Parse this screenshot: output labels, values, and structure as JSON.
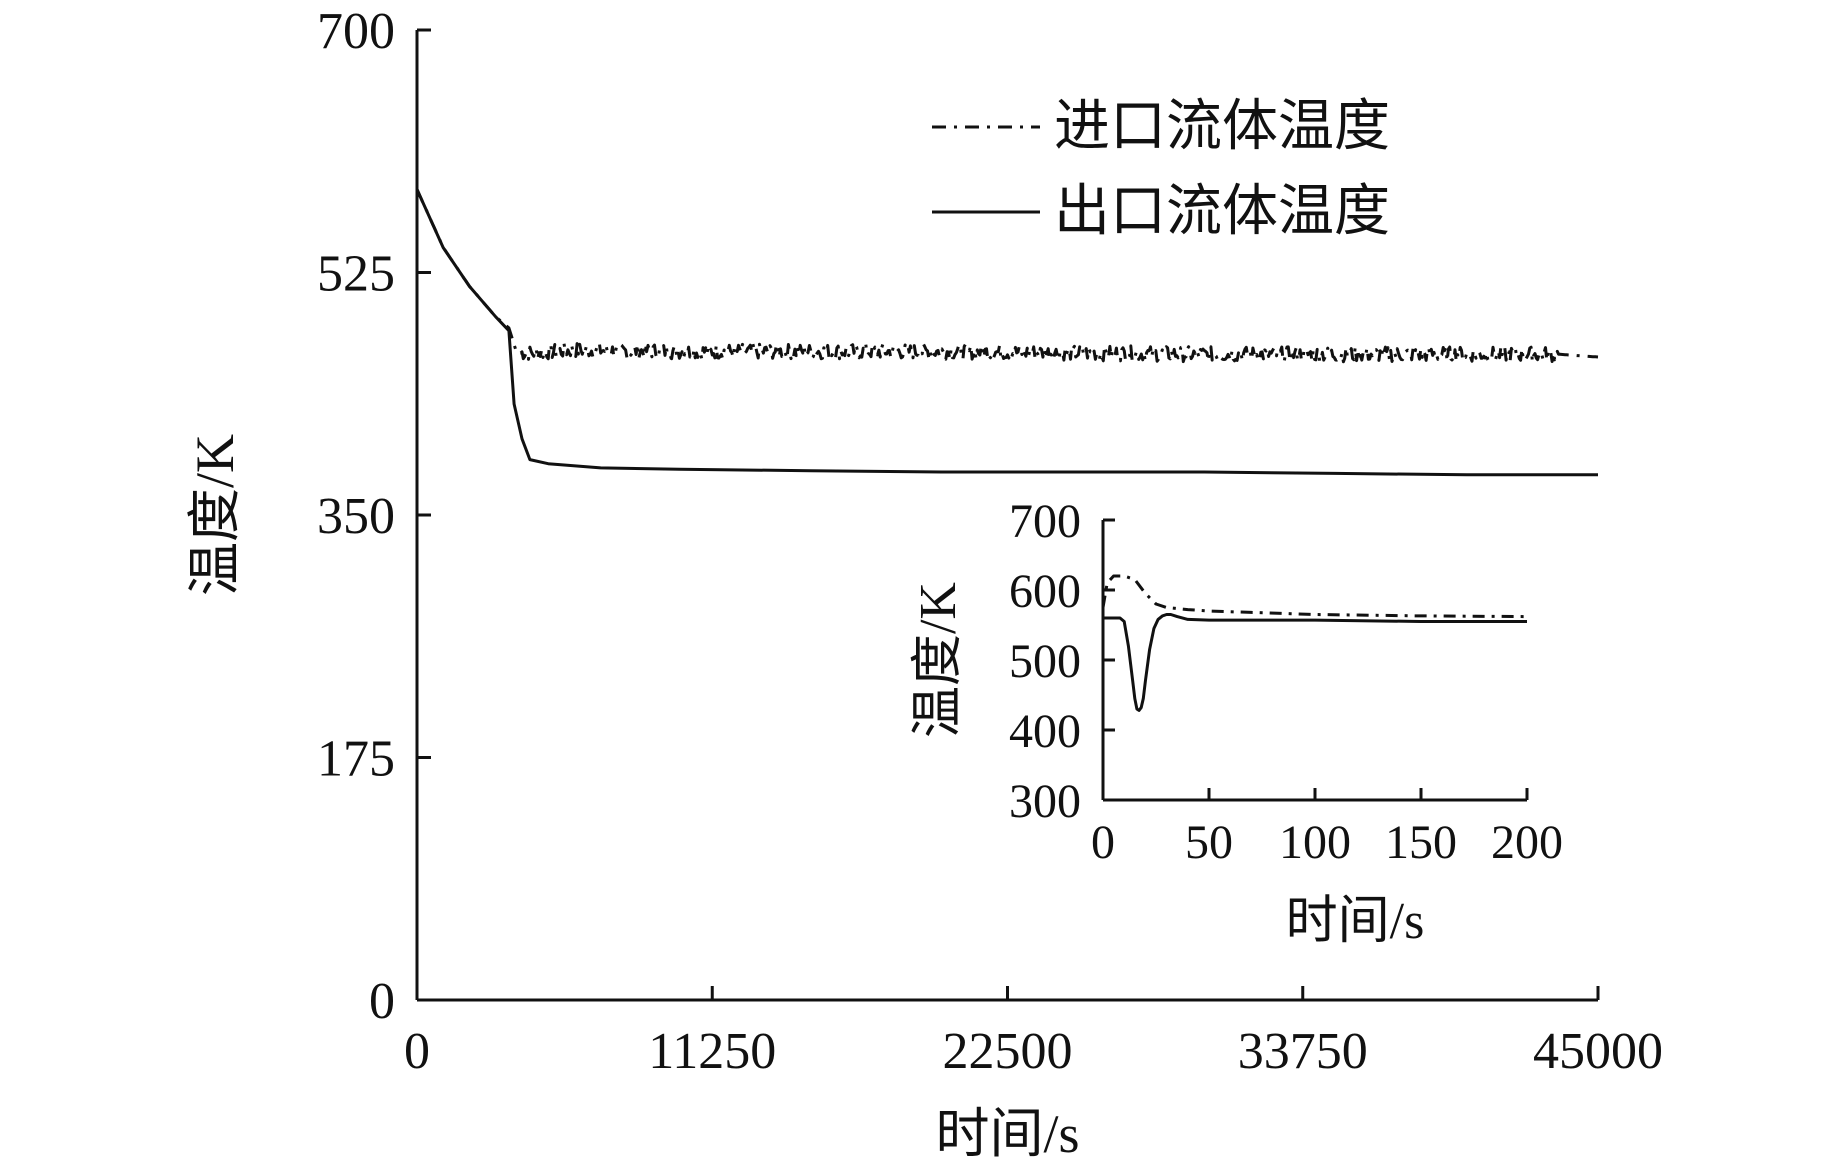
{
  "chart_data": [
    {
      "type": "line",
      "xlabel": "时间/s",
      "ylabel": "温度/K",
      "xlim": [
        0,
        45000
      ],
      "ylim": [
        0,
        700
      ],
      "xticks": [
        "0",
        "11250",
        "22500",
        "33750",
        "45000"
      ],
      "yticks": [
        "0",
        "175",
        "350",
        "525",
        "700"
      ],
      "grid": false,
      "legend_position": "top-right",
      "series": [
        {
          "name": "进口流体温度",
          "style": "dash-dot",
          "noisy": true,
          "x": [
            0,
            1000,
            2000,
            3000,
            3500,
            3800,
            4500,
            6000,
            10000,
            15000,
            20000,
            25000,
            30000,
            35000,
            40000,
            43500,
            45000
          ],
          "y": [
            585,
            543,
            515,
            493,
            485,
            467,
            467,
            469,
            468,
            468,
            468,
            467,
            466,
            466,
            466,
            466,
            464
          ]
        },
        {
          "name": "出口流体温度",
          "style": "solid",
          "noisy": false,
          "x": [
            0,
            1000,
            2000,
            3000,
            3500,
            3700,
            4000,
            4300,
            5000,
            7000,
            10000,
            15000,
            20000,
            25000,
            30000,
            35000,
            40000,
            45000
          ],
          "y": [
            585,
            543,
            515,
            493,
            483,
            430,
            405,
            390,
            387,
            384,
            383,
            382,
            381,
            381,
            381,
            380,
            379,
            379
          ]
        }
      ]
    },
    {
      "type": "line",
      "xlabel": "时间/s",
      "ylabel": "温度/K",
      "xlim": [
        0,
        200
      ],
      "ylim": [
        300,
        700
      ],
      "xticks": [
        "0",
        "50",
        "100",
        "150",
        "200"
      ],
      "yticks": [
        "300",
        "400",
        "500",
        "600",
        "700"
      ],
      "grid": false,
      "series": [
        {
          "name": "进口流体温度",
          "style": "dash-dot",
          "x": [
            0,
            2,
            5,
            10,
            15,
            20,
            25,
            30,
            40,
            50,
            70,
            100,
            150,
            200
          ],
          "y": [
            575,
            610,
            620,
            620,
            615,
            595,
            580,
            575,
            572,
            570,
            568,
            565,
            563,
            562
          ]
        },
        {
          "name": "出口流体温度",
          "style": "solid",
          "x": [
            0,
            8,
            10,
            12,
            14,
            15,
            16,
            17,
            18,
            19,
            20,
            22,
            24,
            26,
            28,
            30,
            32,
            35,
            40,
            50,
            100,
            150,
            200
          ],
          "y": [
            560,
            560,
            555,
            520,
            470,
            445,
            430,
            428,
            432,
            445,
            470,
            515,
            545,
            558,
            563,
            565,
            565,
            562,
            558,
            557,
            557,
            555,
            555
          ]
        }
      ]
    }
  ],
  "colors": {
    "line": "#111111",
    "background": "#ffffff"
  }
}
